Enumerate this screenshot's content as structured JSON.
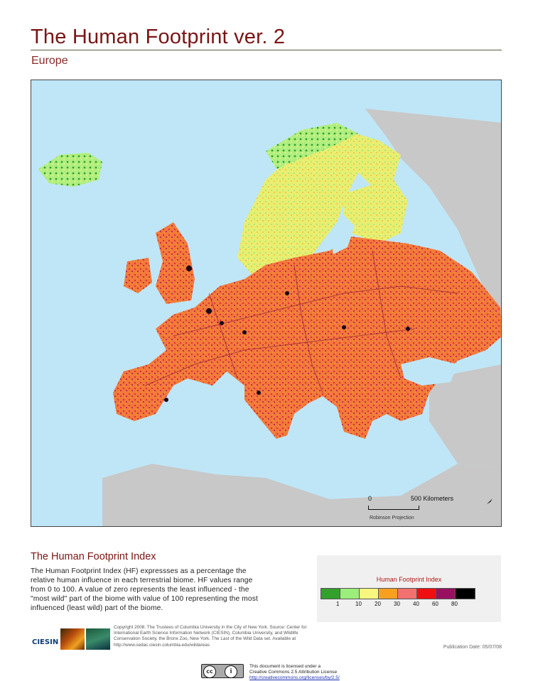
{
  "header": {
    "title": "The Human Footprint ver. 2",
    "subtitle": "Europe"
  },
  "map": {
    "region": "Europe",
    "projection": "Robinson Projection",
    "scale_bar": {
      "start": "0",
      "end": "500 Kilometers"
    },
    "colors": {
      "ocean": "#bfe6f7",
      "other_land": "#c8c8c8",
      "water_inland": "#bfe6f7"
    }
  },
  "legend": {
    "title": "Human Footprint Index",
    "classes": [
      {
        "color": "#33a02c"
      },
      {
        "color": "#9cee7a"
      },
      {
        "color": "#f7f780"
      },
      {
        "color": "#f7a020"
      },
      {
        "color": "#f27070"
      },
      {
        "color": "#ee1010"
      },
      {
        "color": "#9a1060"
      },
      {
        "color": "#000000"
      }
    ],
    "ticks": [
      "1",
      "10",
      "20",
      "30",
      "40",
      "60",
      "80"
    ]
  },
  "description": {
    "title": "The Human Footprint Index",
    "text": "The Human Footprint Index (HF) expressses as a percentage the relative human influence in each terrestrial biome. HF values range from 0 to 100. A value of zero represents the least influenced - the \"most wild\" part of the biome with value of 100 representing the most influenced (least wild) part of the biome."
  },
  "credits": {
    "copyright": "Copyright 2008. The Trustees of Columbia University in the City of New York. Source: Center for International Earth Science Information Network (CIESIN), Columbia University, and Wildlife Conservation Society, the Bronx Zoo, New York. The Last of the Wild Data set. Available at http://www.sedac.ciesin.columbia.edu/wildareas",
    "publication_date": "Publication Date: 05/07/08",
    "logo_text": "CIESIN",
    "license_line1": "This document is licensed under a",
    "license_line2": "Creative Commons 2.5 Attribution License",
    "license_url": "http://creativecommons.org/licenses/by/2.5/",
    "cc_badge": "cc",
    "by_badge": "i"
  }
}
